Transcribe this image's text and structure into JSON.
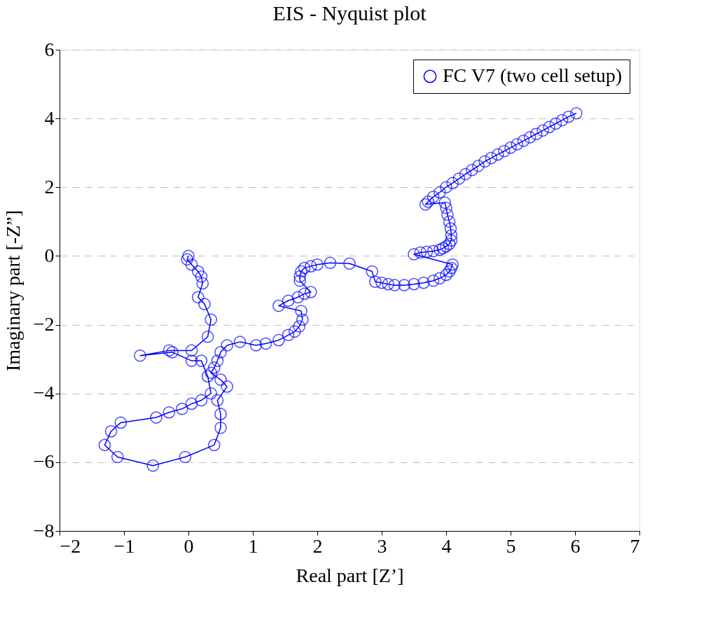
{
  "chart_data": {
    "type": "line",
    "title": "EIS - Nyquist plot",
    "xlabel": "Real part [Z’]",
    "ylabel": "Imaginary part [-Z”]",
    "xlim": [
      -2,
      7
    ],
    "ylim": [
      -8,
      6
    ],
    "xticks": [
      -2,
      -1,
      0,
      1,
      2,
      3,
      4,
      5,
      6,
      7
    ],
    "yticks": [
      -8,
      -6,
      -4,
      -2,
      0,
      2,
      4,
      6
    ],
    "grid": "y",
    "legend": "top right",
    "marker": "circle",
    "line_style": "solid",
    "series": [
      {
        "name": "FC V7 (two cell setup)",
        "color": "#0000ff",
        "x": [
          6.02,
          5.9,
          5.8,
          5.7,
          5.6,
          5.5,
          5.4,
          5.3,
          5.2,
          5.1,
          5.0,
          4.9,
          4.8,
          4.7,
          4.6,
          4.5,
          4.4,
          4.3,
          4.2,
          4.1,
          4.0,
          3.9,
          3.8,
          3.72,
          3.68,
          3.98,
          4.0,
          4.02,
          4.05,
          4.07,
          4.08,
          4.08,
          4.05,
          4.0,
          3.95,
          3.9,
          3.8,
          3.7,
          3.6,
          3.5,
          4.1,
          4.08,
          4.05,
          4.0,
          3.9,
          3.8,
          3.65,
          3.5,
          3.35,
          3.2,
          3.1,
          3.0,
          2.9,
          2.85,
          2.5,
          2.2,
          2.0,
          1.9,
          1.8,
          1.75,
          1.73,
          1.73,
          1.9,
          1.8,
          1.7,
          1.55,
          1.4,
          1.75,
          1.77,
          1.72,
          1.65,
          1.55,
          1.4,
          1.2,
          1.05,
          0.8,
          0.6,
          0.5,
          0.45,
          0.4,
          0.35,
          0.5,
          0.6,
          0.45,
          0.5,
          0.5,
          0.4,
          -0.05,
          -0.55,
          -1.1,
          -1.3,
          -1.2,
          -1.05,
          -0.5,
          -0.3,
          -0.1,
          0.05,
          0.2,
          0.35,
          0.3,
          0.2,
          0.05,
          -0.25,
          -0.75,
          -0.3,
          0.05,
          0.3,
          0.35,
          0.25,
          0.15,
          0.22,
          0.2,
          0.15,
          0.05,
          -0.02,
          0.0
        ],
        "values": [
          4.15,
          4.05,
          3.95,
          3.85,
          3.75,
          3.65,
          3.55,
          3.45,
          3.35,
          3.25,
          3.15,
          3.05,
          2.95,
          2.85,
          2.75,
          2.62,
          2.5,
          2.38,
          2.25,
          2.12,
          2.0,
          1.85,
          1.72,
          1.58,
          1.5,
          1.55,
          1.4,
          1.2,
          1.0,
          0.8,
          0.6,
          0.45,
          0.35,
          0.28,
          0.22,
          0.18,
          0.14,
          0.12,
          0.1,
          0.05,
          -0.25,
          -0.35,
          -0.45,
          -0.55,
          -0.65,
          -0.72,
          -0.78,
          -0.82,
          -0.85,
          -0.85,
          -0.82,
          -0.78,
          -0.75,
          -0.45,
          -0.22,
          -0.2,
          -0.25,
          -0.3,
          -0.35,
          -0.45,
          -0.6,
          -0.72,
          -1.05,
          -1.1,
          -1.2,
          -1.3,
          -1.45,
          -1.6,
          -1.85,
          -2.05,
          -2.2,
          -2.3,
          -2.45,
          -2.55,
          -2.6,
          -2.5,
          -2.6,
          -2.8,
          -3.05,
          -3.25,
          -3.4,
          -3.6,
          -3.8,
          -4.2,
          -4.6,
          -5.0,
          -5.5,
          -5.85,
          -6.1,
          -5.85,
          -5.5,
          -5.1,
          -4.85,
          -4.7,
          -4.55,
          -4.45,
          -4.3,
          -4.2,
          -4.0,
          -3.5,
          -3.05,
          -3.05,
          -2.8,
          -2.9,
          -2.75,
          -2.75,
          -2.35,
          -1.85,
          -1.4,
          -1.2,
          -0.8,
          -0.6,
          -0.45,
          -0.25,
          -0.1,
          0.0
        ]
      }
    ]
  }
}
